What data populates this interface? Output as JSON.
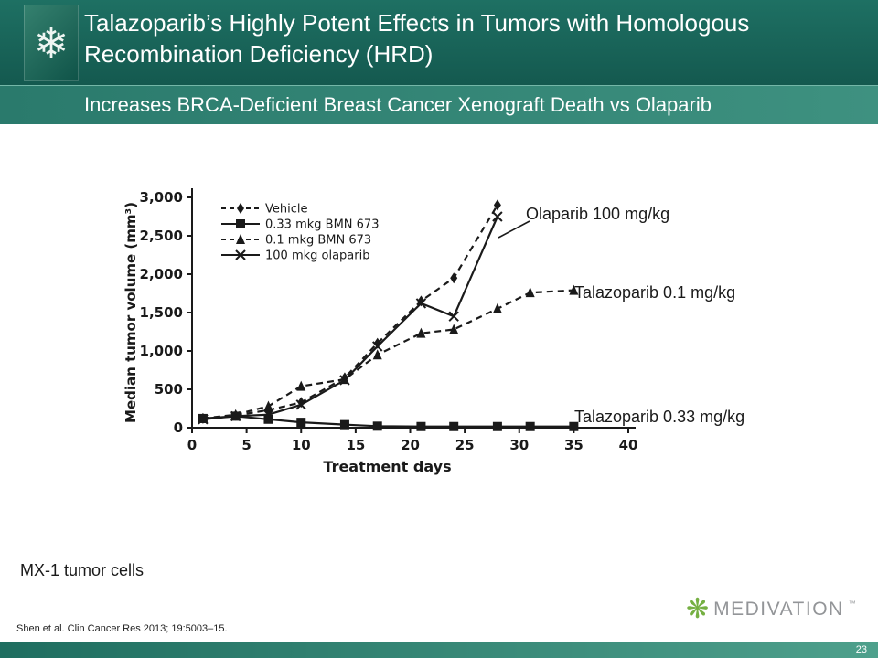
{
  "header": {
    "title": "Talazoparib’s Highly Potent Effects in Tumors with Homologous Recombination Deficiency (HRD)",
    "subtitle": "Increases BRCA-Deficient Breast Cancer Xenograft Death vs Olaparib"
  },
  "icons": {
    "logo_glyph": "❄",
    "brand_star_glyph": "❋"
  },
  "chart_data": {
    "type": "line",
    "title": "",
    "xlabel": "Treatment days",
    "ylabel": "Median tumor volume (mm³)",
    "xlim": [
      0,
      40
    ],
    "ylim": [
      0,
      3000
    ],
    "xticks": [
      0,
      5,
      10,
      15,
      20,
      25,
      30,
      35,
      40
    ],
    "yticks": [
      0,
      500,
      1000,
      1500,
      2000,
      2500,
      3000
    ],
    "ytick_labels": [
      "0",
      "500",
      "1,000",
      "1,500",
      "2,000",
      "2,500",
      "3,000"
    ],
    "grid": false,
    "legend_position": "top-left",
    "line_color": "#1a1a1a",
    "series": [
      {
        "name": "Vehicle",
        "marker": "diamond",
        "line": "dashed",
        "x": [
          1,
          4,
          7,
          10,
          14,
          17,
          21,
          24,
          28
        ],
        "y": [
          120,
          160,
          230,
          330,
          650,
          1100,
          1650,
          1950,
          2900
        ]
      },
      {
        "name": "0.33 mkg BMN 673",
        "marker": "square",
        "line": "solid",
        "x": [
          1,
          4,
          7,
          10,
          14,
          17,
          21,
          24,
          28,
          31,
          35
        ],
        "y": [
          120,
          150,
          110,
          70,
          40,
          20,
          15,
          15,
          15,
          15,
          15
        ]
      },
      {
        "name": "0.1 mkg BMN 673",
        "marker": "triangle",
        "line": "dashed",
        "x": [
          1,
          4,
          7,
          10,
          14,
          17,
          21,
          24,
          28,
          31,
          35
        ],
        "y": [
          120,
          170,
          280,
          540,
          630,
          950,
          1230,
          1280,
          1550,
          1760,
          1790
        ]
      },
      {
        "name": "100 mkg olaparib",
        "marker": "x",
        "line": "solid",
        "x": [
          1,
          4,
          7,
          10,
          14,
          17,
          21,
          24,
          28
        ],
        "y": [
          110,
          150,
          170,
          300,
          620,
          1060,
          1620,
          1450,
          2750
        ]
      }
    ]
  },
  "annotations": [
    {
      "text": "Olaparib 100 mg/kg"
    },
    {
      "text": "Talazoparib 0.1 mg/kg"
    },
    {
      "text": "Talazoparib 0.33 mg/kg"
    }
  ],
  "footer": {
    "cell_line": "MX-1 tumor cells",
    "citation": "Shen et al. Clin Cancer Res 2013; 19:5003–15.",
    "brand": "MEDIVATION",
    "trademark": "™",
    "page_number": "23"
  },
  "colors": {
    "header_bg": "#17695d",
    "band_teal": "#2f8173",
    "accent_green": "#76b043",
    "brand_gray": "#939598",
    "chart_ink": "#1a1a1a"
  }
}
